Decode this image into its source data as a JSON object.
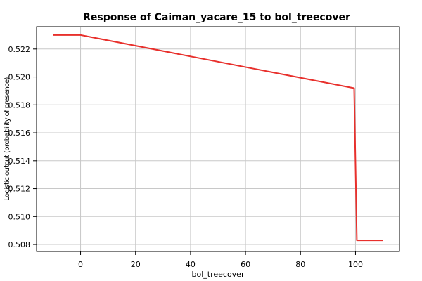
{
  "chart_data": {
    "type": "line",
    "title": "Response of Caiman_yacare_15 to bol_treecover",
    "xlabel": "bol_treecover",
    "ylabel": "Logistic output (probability of presence)",
    "xlim": [
      -16,
      116
    ],
    "ylim": [
      0.5075,
      0.5236
    ],
    "x_ticks": [
      0,
      20,
      40,
      60,
      80,
      100
    ],
    "y_ticks": [
      0.508,
      0.51,
      0.512,
      0.514,
      0.516,
      0.518,
      0.52,
      0.522
    ],
    "y_tick_labels": [
      "0.508",
      "0.510",
      "0.512",
      "0.514",
      "0.516",
      "0.518",
      "0.520",
      "0.522"
    ],
    "grid": true,
    "series": [
      {
        "color": "#e8302c",
        "x": [
          -10,
          0,
          99.5,
          100.5,
          110
        ],
        "y": [
          0.523,
          0.523,
          0.5192,
          0.5083,
          0.5083
        ]
      }
    ]
  }
}
